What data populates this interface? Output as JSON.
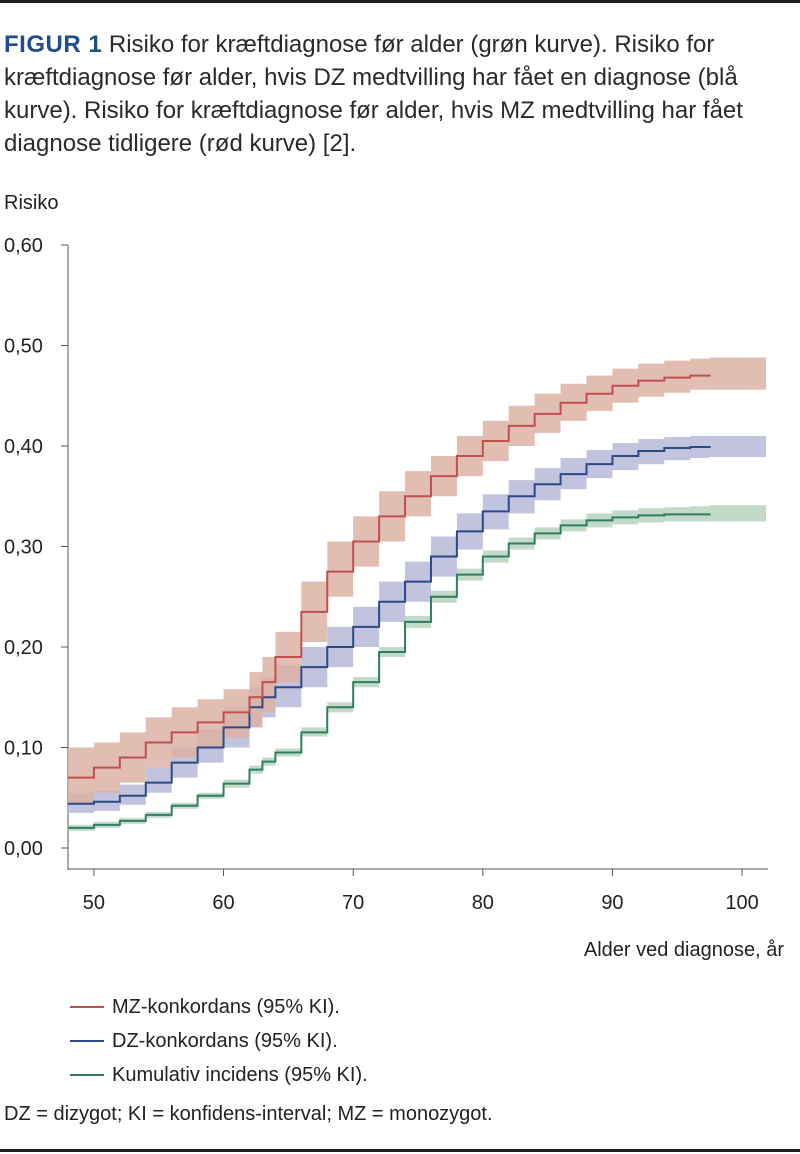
{
  "caption": {
    "label": "FIGUR 1",
    "text": "Risiko for kræftdiagnose før alder (grøn kurve). Risiko for kræftdiagnose før alder, hvis DZ medtvilling har fået en diagnose (blå kurve). Risiko for kræftdiagnose før alder, hvis MZ medtvilling har fået diagnose tidligere (rød kurve) [2]."
  },
  "footnote": "DZ = dizygot; KI = konfidens-interval; MZ = monozygot.",
  "colors": {
    "mz": "#c0504d",
    "mz_band": "#dcb2a4",
    "dz": "#2b4a87",
    "dz_band": "#b6b8d9",
    "cum": "#2f7d63",
    "cum_band": "#b9d3bf",
    "axis": "#555555"
  },
  "chart_data": {
    "type": "line",
    "title": "",
    "xlabel": "Alder ved diagnose, år",
    "ylabel": "Risiko",
    "xlim": [
      48,
      102
    ],
    "ylim": [
      0,
      0.6
    ],
    "xticks": [
      50,
      60,
      70,
      80,
      90,
      100
    ],
    "xtick_labels": [
      "50",
      "60",
      "70",
      "80",
      "90",
      "100"
    ],
    "yticks": [
      0,
      0.1,
      0.2,
      0.3,
      0.4,
      0.5,
      0.6
    ],
    "ytick_labels": [
      "0,00",
      "0,10",
      "0,20",
      "0,30",
      "0,40",
      "0,50",
      "0,60"
    ],
    "grid": false,
    "legend_position": "bottom-left",
    "x": [
      48,
      50,
      52,
      54,
      56,
      58,
      60,
      62,
      63,
      64,
      66,
      68,
      70,
      72,
      74,
      76,
      78,
      80,
      82,
      84,
      86,
      88,
      90,
      92,
      94,
      96,
      97.5
    ],
    "series": [
      {
        "name": "MZ-konkordans (95% KI).",
        "key": "mz",
        "values": [
          0.07,
          0.08,
          0.09,
          0.105,
          0.115,
          0.125,
          0.135,
          0.15,
          0.165,
          0.19,
          0.235,
          0.275,
          0.305,
          0.33,
          0.35,
          0.37,
          0.39,
          0.405,
          0.42,
          0.432,
          0.443,
          0.452,
          0.46,
          0.465,
          0.468,
          0.47,
          0.471
        ],
        "ci_lower": [
          0.045,
          0.055,
          0.065,
          0.08,
          0.09,
          0.1,
          0.11,
          0.12,
          0.135,
          0.165,
          0.205,
          0.25,
          0.28,
          0.305,
          0.33,
          0.35,
          0.37,
          0.385,
          0.4,
          0.413,
          0.425,
          0.435,
          0.443,
          0.449,
          0.453,
          0.456,
          0.456
        ],
        "ci_upper": [
          0.1,
          0.105,
          0.115,
          0.13,
          0.14,
          0.148,
          0.158,
          0.175,
          0.19,
          0.215,
          0.265,
          0.305,
          0.33,
          0.355,
          0.375,
          0.39,
          0.41,
          0.425,
          0.44,
          0.452,
          0.462,
          0.47,
          0.477,
          0.482,
          0.485,
          0.487,
          0.488
        ]
      },
      {
        "name": "DZ-konkordans (95% KI).",
        "key": "dz",
        "values": [
          0.044,
          0.046,
          0.052,
          0.065,
          0.085,
          0.1,
          0.12,
          0.14,
          0.15,
          0.16,
          0.18,
          0.2,
          0.22,
          0.245,
          0.265,
          0.29,
          0.315,
          0.335,
          0.35,
          0.362,
          0.372,
          0.382,
          0.39,
          0.395,
          0.398,
          0.399,
          0.4
        ],
        "ci_lower": [
          0.035,
          0.037,
          0.043,
          0.055,
          0.07,
          0.085,
          0.1,
          0.12,
          0.13,
          0.14,
          0.16,
          0.18,
          0.2,
          0.225,
          0.245,
          0.27,
          0.297,
          0.317,
          0.333,
          0.346,
          0.357,
          0.368,
          0.376,
          0.382,
          0.386,
          0.388,
          0.389
        ],
        "ci_upper": [
          0.055,
          0.057,
          0.063,
          0.08,
          0.1,
          0.118,
          0.14,
          0.16,
          0.17,
          0.182,
          0.2,
          0.22,
          0.24,
          0.265,
          0.285,
          0.31,
          0.333,
          0.352,
          0.366,
          0.378,
          0.388,
          0.396,
          0.403,
          0.407,
          0.409,
          0.41,
          0.41
        ]
      },
      {
        "name": "Kumulativ incidens (95% KI).",
        "key": "cum",
        "values": [
          0.02,
          0.023,
          0.027,
          0.033,
          0.042,
          0.052,
          0.064,
          0.078,
          0.086,
          0.095,
          0.115,
          0.14,
          0.165,
          0.195,
          0.225,
          0.25,
          0.272,
          0.29,
          0.303,
          0.313,
          0.321,
          0.326,
          0.329,
          0.331,
          0.332,
          0.332,
          0.333
        ],
        "ci_lower": [
          0.017,
          0.02,
          0.024,
          0.03,
          0.039,
          0.049,
          0.06,
          0.074,
          0.082,
          0.091,
          0.111,
          0.135,
          0.16,
          0.19,
          0.219,
          0.244,
          0.266,
          0.284,
          0.297,
          0.307,
          0.315,
          0.319,
          0.322,
          0.324,
          0.325,
          0.325,
          0.325
        ],
        "ci_upper": [
          0.023,
          0.026,
          0.03,
          0.036,
          0.045,
          0.055,
          0.068,
          0.082,
          0.09,
          0.099,
          0.12,
          0.145,
          0.17,
          0.2,
          0.231,
          0.256,
          0.278,
          0.296,
          0.309,
          0.319,
          0.327,
          0.333,
          0.336,
          0.338,
          0.339,
          0.34,
          0.341
        ]
      }
    ]
  }
}
